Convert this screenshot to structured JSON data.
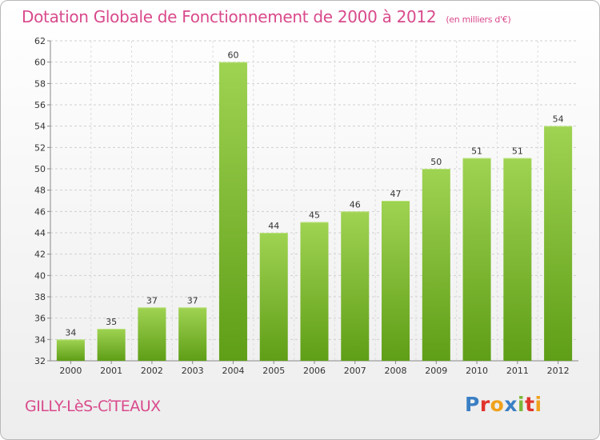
{
  "header": {
    "title": "Dotation Globale de Fonctionnement de 2000 à 2012",
    "subtitle": "(en milliers d'€)"
  },
  "footer": {
    "city": "GILLY-LèS-CîTEAUX",
    "logo_letters": [
      "P",
      "r",
      "o",
      "x",
      "i",
      "t",
      "i"
    ],
    "logo_colors": [
      "#3a7fc4",
      "#e0342c",
      "#f0a21b",
      "#3a7fc4",
      "#7ab83a",
      "#e0342c",
      "#f0a21b"
    ]
  },
  "chart_data": {
    "type": "bar",
    "categories": [
      "2000",
      "2001",
      "2002",
      "2003",
      "2004",
      "2005",
      "2006",
      "2007",
      "2008",
      "2009",
      "2010",
      "2011",
      "2012"
    ],
    "values": [
      34,
      35,
      37,
      37,
      60,
      44,
      45,
      46,
      47,
      50,
      51,
      51,
      54
    ],
    "ylim": [
      32,
      62
    ],
    "yticks": [
      32,
      34,
      36,
      38,
      40,
      42,
      44,
      46,
      48,
      50,
      52,
      54,
      56,
      58,
      60,
      62
    ],
    "grid": "horizontal-dashed",
    "bar_color": "#7fbf3a"
  }
}
